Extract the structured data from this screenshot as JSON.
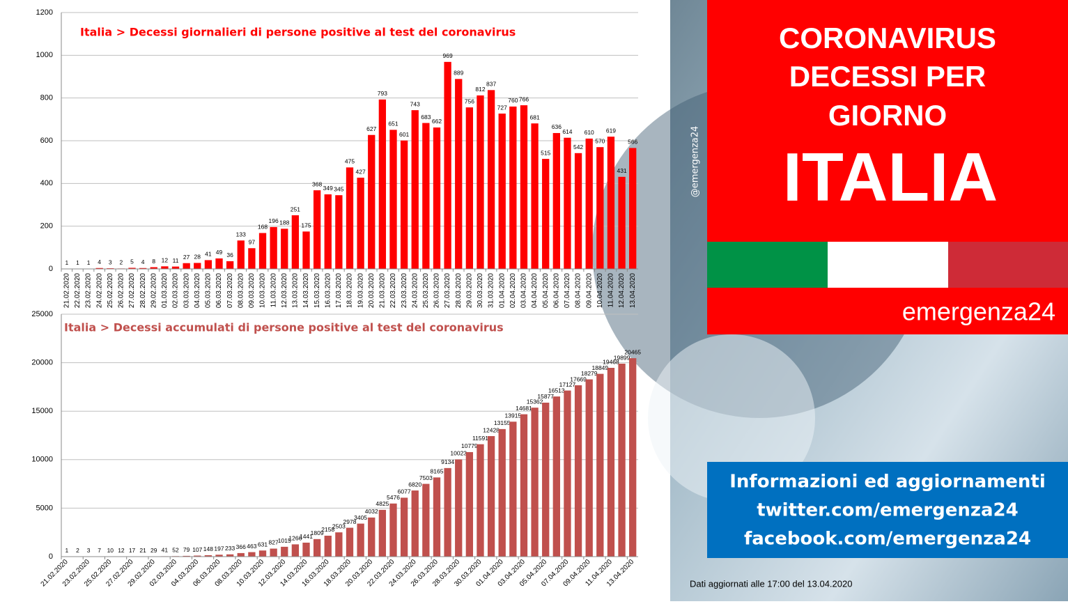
{
  "chart_data": [
    {
      "type": "bar",
      "title": "Italia > Decessi giornalieri di persone positive al test del coronavirus",
      "color": "#ff0000",
      "title_color": "#ff0000",
      "categories": [
        "21.02.2020",
        "22.02.2020",
        "23.02.2020",
        "24.02.2020",
        "25.02.2020",
        "26.02.2020",
        "27.02.2020",
        "28.02.2020",
        "29.02.2020",
        "01.03.2020",
        "02.03.2020",
        "03.03.2020",
        "04.03.2020",
        "05.03.2020",
        "06.03.2020",
        "07.03.2020",
        "08.03.2020",
        "09.03.2020",
        "10.03.2020",
        "11.03.2020",
        "12.03.2020",
        "13.03.2020",
        "14.03.2020",
        "15.03.2020",
        "16.03.2020",
        "17.03.2020",
        "18.03.2020",
        "19.03.2020",
        "20.03.2020",
        "21.03.2020",
        "22.03.2020",
        "23.03.2020",
        "24.03.2020",
        "25.03.2020",
        "26.03.2020",
        "27.03.2020",
        "28.03.2020",
        "29.03.2020",
        "30.03.2020",
        "31.03.2020",
        "01.04.2020",
        "02.04.2020",
        "03.04.2020",
        "04.04.2020",
        "05.04.2020",
        "06.04.2020",
        "07.04.2020",
        "08.04.2020",
        "09.04.2020",
        "10.04.2020",
        "11.04.2020",
        "12.04.2020",
        "13.04.2020"
      ],
      "values": [
        1,
        1,
        1,
        4,
        3,
        2,
        5,
        4,
        8,
        12,
        11,
        27,
        28,
        41,
        49,
        36,
        133,
        97,
        168,
        196,
        188,
        251,
        175,
        368,
        349,
        345,
        475,
        427,
        627,
        793,
        651,
        601,
        743,
        683,
        662,
        969,
        889,
        756,
        812,
        837,
        727,
        760,
        766,
        681,
        515,
        636,
        614,
        542,
        610,
        570,
        619,
        431,
        566
      ],
      "ylim": [
        0,
        1200
      ],
      "yticks": [
        0,
        200,
        400,
        600,
        800,
        1000,
        1200
      ],
      "grid": true
    },
    {
      "type": "bar",
      "title": "Italia > Decessi accumulati di persone positive al test del coronavirus",
      "color": "#c0504d",
      "title_color": "#c0504d",
      "categories": [
        "21.02.2020",
        null,
        "23.02.2020",
        null,
        "25.02.2020",
        null,
        "27.02.2020",
        null,
        "29.02.2020",
        null,
        "02.03.2020",
        null,
        "04.03.2020",
        null,
        "06.03.2020",
        null,
        "08.03.2020",
        null,
        "10.03.2020",
        null,
        "12.03.2020",
        null,
        "14.03.2020",
        null,
        "16.03.2020",
        null,
        "18.03.2020",
        null,
        "20.03.2020",
        null,
        "22.03.2020",
        null,
        "24.03.2020",
        null,
        "26.03.2020",
        null,
        "28.03.2020",
        null,
        "30.03.2020",
        null,
        "01.04.2020",
        null,
        "03.04.2020",
        null,
        "05.04.2020",
        null,
        "07.04.2020",
        null,
        "09.04.2020",
        null,
        "11.04.2020",
        null,
        "13.04.2020"
      ],
      "values": [
        1,
        2,
        3,
        7,
        10,
        12,
        17,
        21,
        29,
        41,
        52,
        79,
        107,
        148,
        197,
        233,
        366,
        463,
        631,
        827,
        1015,
        1266,
        1441,
        1809,
        2158,
        2503,
        2978,
        3405,
        4032,
        4825,
        5476,
        6077,
        6820,
        7503,
        8165,
        9134,
        10023,
        10779,
        11591,
        12428,
        13155,
        13915,
        14681,
        15362,
        15877,
        16513,
        17127,
        17669,
        18279,
        18849,
        19468,
        19899,
        20465
      ],
      "ylim": [
        0,
        25000
      ],
      "yticks": [
        0,
        5000,
        10000,
        15000,
        20000,
        25000
      ],
      "grid": true
    }
  ],
  "panel": {
    "title_lines": [
      "CORONAVIRUS",
      "DECESSI PER",
      "GIORNO"
    ],
    "headline": "ITALIA",
    "brand": "emergenza24",
    "handle": "@emergenza24",
    "info_lines": [
      "Informazioni ed aggiornamenti",
      "twitter.com/emergenza24",
      "facebook.com/emergenza24"
    ],
    "footer": "Dati aggiornati alle 17:00 del 13.04.2020"
  }
}
